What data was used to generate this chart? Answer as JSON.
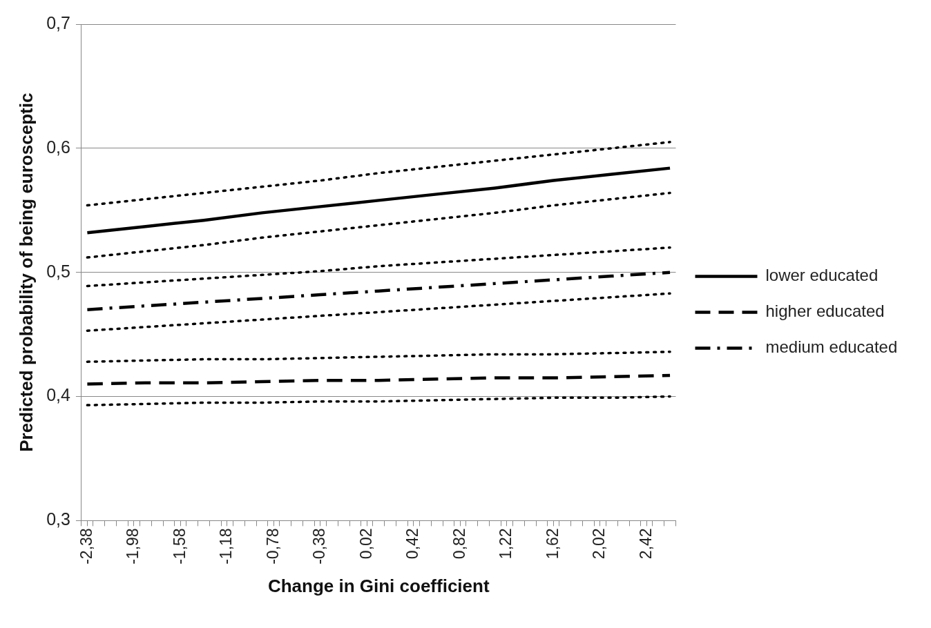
{
  "chart_data": {
    "type": "line",
    "xlabel": "Change in Gini coefficient",
    "ylabel": "Predicted probability of being eurosceptic",
    "x": [
      -2.38,
      -1.88,
      -1.38,
      -0.88,
      -0.38,
      0.12,
      0.62,
      1.12,
      1.62,
      2.12,
      2.62
    ],
    "xlim": [
      -2.43,
      2.67
    ],
    "xticks": [
      {
        "value": -2.43,
        "label": null
      },
      {
        "value": -2.38,
        "label": "-2,38"
      },
      {
        "value": -2.33,
        "label": null
      },
      {
        "value": -2.23,
        "label": null
      },
      {
        "value": -2.13,
        "label": null
      },
      {
        "value": -2.03,
        "label": null
      },
      {
        "value": -1.98,
        "label": "-1,98"
      },
      {
        "value": -1.93,
        "label": null
      },
      {
        "value": -1.83,
        "label": null
      },
      {
        "value": -1.73,
        "label": null
      },
      {
        "value": -1.63,
        "label": null
      },
      {
        "value": -1.58,
        "label": "-1,58"
      },
      {
        "value": -1.53,
        "label": null
      },
      {
        "value": -1.43,
        "label": null
      },
      {
        "value": -1.33,
        "label": null
      },
      {
        "value": -1.23,
        "label": null
      },
      {
        "value": -1.18,
        "label": "-1,18"
      },
      {
        "value": -1.13,
        "label": null
      },
      {
        "value": -1.03,
        "label": null
      },
      {
        "value": -0.93,
        "label": null
      },
      {
        "value": -0.83,
        "label": null
      },
      {
        "value": -0.78,
        "label": "-0,78"
      },
      {
        "value": -0.73,
        "label": null
      },
      {
        "value": -0.63,
        "label": null
      },
      {
        "value": -0.53,
        "label": null
      },
      {
        "value": -0.43,
        "label": null
      },
      {
        "value": -0.38,
        "label": "-0,38"
      },
      {
        "value": -0.33,
        "label": null
      },
      {
        "value": -0.23,
        "label": null
      },
      {
        "value": -0.13,
        "label": null
      },
      {
        "value": -0.03,
        "label": null
      },
      {
        "value": 0.02,
        "label": "0,02"
      },
      {
        "value": 0.07,
        "label": null
      },
      {
        "value": 0.17,
        "label": null
      },
      {
        "value": 0.27,
        "label": null
      },
      {
        "value": 0.37,
        "label": null
      },
      {
        "value": 0.42,
        "label": "0,42"
      },
      {
        "value": 0.47,
        "label": null
      },
      {
        "value": 0.57,
        "label": null
      },
      {
        "value": 0.67,
        "label": null
      },
      {
        "value": 0.77,
        "label": null
      },
      {
        "value": 0.82,
        "label": "0,82"
      },
      {
        "value": 0.87,
        "label": null
      },
      {
        "value": 0.97,
        "label": null
      },
      {
        "value": 1.07,
        "label": null
      },
      {
        "value": 1.17,
        "label": null
      },
      {
        "value": 1.22,
        "label": "1,22"
      },
      {
        "value": 1.27,
        "label": null
      },
      {
        "value": 1.37,
        "label": null
      },
      {
        "value": 1.47,
        "label": null
      },
      {
        "value": 1.57,
        "label": null
      },
      {
        "value": 1.62,
        "label": "1,62"
      },
      {
        "value": 1.67,
        "label": null
      },
      {
        "value": 1.77,
        "label": null
      },
      {
        "value": 1.87,
        "label": null
      },
      {
        "value": 1.97,
        "label": null
      },
      {
        "value": 2.02,
        "label": "2,02"
      },
      {
        "value": 2.07,
        "label": null
      },
      {
        "value": 2.17,
        "label": null
      },
      {
        "value": 2.27,
        "label": null
      },
      {
        "value": 2.37,
        "label": null
      },
      {
        "value": 2.42,
        "label": "2,42"
      },
      {
        "value": 2.47,
        "label": null
      },
      {
        "value": 2.57,
        "label": null
      },
      {
        "value": 2.67,
        "label": null
      }
    ],
    "ylim": [
      0.3,
      0.7
    ],
    "yticks": [
      {
        "value": 0.3,
        "label": "0,3"
      },
      {
        "value": 0.4,
        "label": "0,4"
      },
      {
        "value": 0.5,
        "label": "0,5"
      },
      {
        "value": 0.6,
        "label": "0,6"
      },
      {
        "value": 0.7,
        "label": "0,7"
      }
    ],
    "grid": "y",
    "legend": "right",
    "marker": "none",
    "series": [
      {
        "name": "lower educated",
        "color": "#000000",
        "line_style": "solid",
        "values": [
          0.532,
          0.537,
          0.542,
          0.548,
          0.553,
          0.558,
          0.563,
          0.568,
          0.574,
          0.579,
          0.584
        ]
      },
      {
        "name": "higher educated",
        "color": "#000000",
        "line_style": "dashed",
        "values": [
          0.41,
          0.411,
          0.411,
          0.412,
          0.413,
          0.413,
          0.414,
          0.415,
          0.415,
          0.416,
          0.417
        ]
      },
      {
        "name": "medium educated",
        "color": "#000000",
        "line_style": "dashdot",
        "values": [
          0.47,
          0.473,
          0.476,
          0.479,
          0.482,
          0.485,
          0.488,
          0.491,
          0.494,
          0.497,
          0.5
        ]
      },
      {
        "color": "#000000",
        "line_style": "dotted",
        "values": [
          0.554,
          0.559,
          0.564,
          0.569,
          0.574,
          0.58,
          0.585,
          0.59,
          0.595,
          0.6,
          0.605
        ]
      },
      {
        "color": "#000000",
        "line_style": "dotted",
        "values": [
          0.512,
          0.517,
          0.522,
          0.528,
          0.533,
          0.538,
          0.543,
          0.548,
          0.554,
          0.559,
          0.564
        ]
      },
      {
        "color": "#000000",
        "line_style": "dotted",
        "values": [
          0.489,
          0.492,
          0.495,
          0.498,
          0.501,
          0.505,
          0.508,
          0.511,
          0.514,
          0.517,
          0.52
        ]
      },
      {
        "color": "#000000",
        "line_style": "dotted",
        "values": [
          0.453,
          0.456,
          0.459,
          0.462,
          0.465,
          0.468,
          0.471,
          0.474,
          0.477,
          0.48,
          0.483
        ]
      },
      {
        "color": "#000000",
        "line_style": "dotted",
        "values": [
          0.428,
          0.429,
          0.43,
          0.43,
          0.431,
          0.432,
          0.433,
          0.434,
          0.434,
          0.435,
          0.436
        ]
      },
      {
        "color": "#000000",
        "line_style": "dotted",
        "values": [
          0.393,
          0.394,
          0.395,
          0.395,
          0.396,
          0.396,
          0.397,
          0.398,
          0.399,
          0.399,
          0.4
        ]
      }
    ]
  }
}
